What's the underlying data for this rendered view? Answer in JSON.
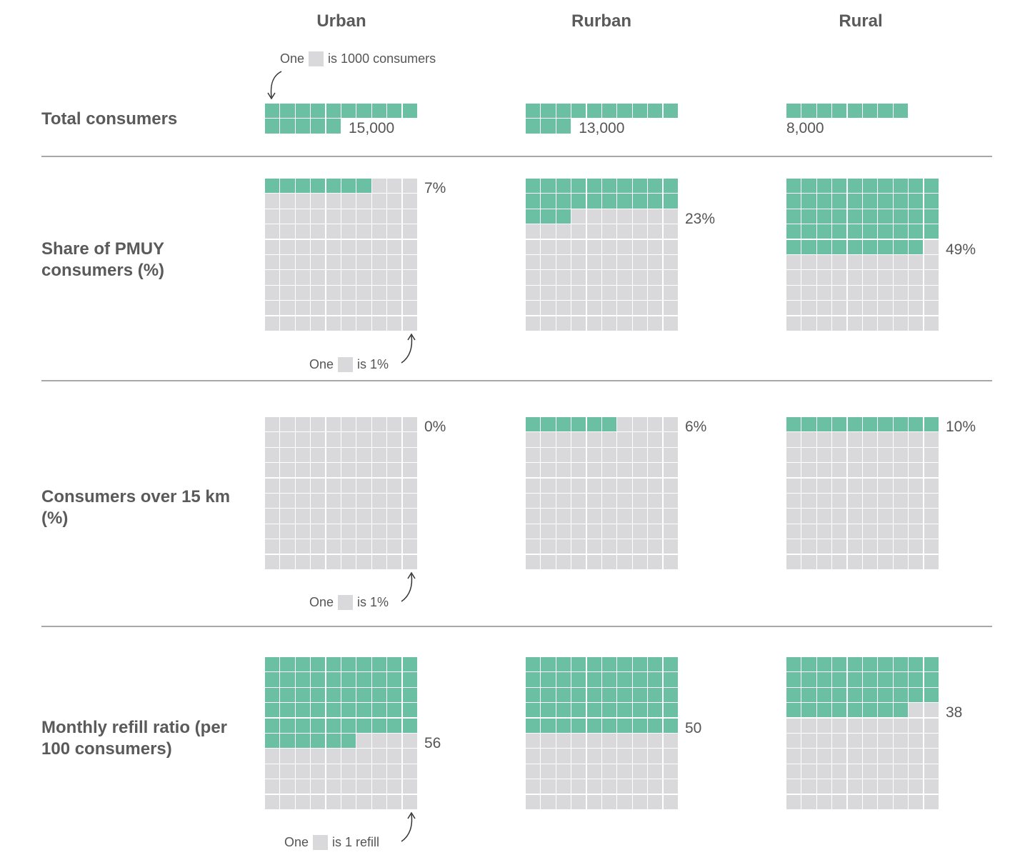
{
  "colors": {
    "filled": "#6bbfa3",
    "empty": "#d9d9dc",
    "text": "#555555",
    "rule": "#a8a8a8"
  },
  "columns": [
    "Urban",
    "Rurban",
    "Rural"
  ],
  "rows": [
    {
      "label": "Total consumers"
    },
    {
      "label": "Share of PMUY consumers (%)"
    },
    {
      "label": "Consumers over 15 km (%)"
    },
    {
      "label": "Monthly refill ratio (per 100 consumers)"
    }
  ],
  "legends": [
    {
      "pre": "One",
      "post": "is 1000 consumers"
    },
    {
      "pre": "One",
      "post": "is 1%"
    },
    {
      "pre": "One",
      "post": "is 1%"
    },
    {
      "pre": "One",
      "post": "is 1 refill"
    }
  ],
  "chart_data": {
    "type": "waffle",
    "columns": [
      "Urban",
      "Rurban",
      "Rural"
    ],
    "rows": [
      {
        "name": "Total consumers",
        "unit": "1 square = 1000 consumers",
        "values": [
          15000,
          13000,
          8000
        ],
        "labels": [
          "15,000",
          "13,000",
          "8,000"
        ]
      },
      {
        "name": "Share of PMUY consumers (%)",
        "unit": "1 square = 1%",
        "total": 100,
        "values": [
          7,
          23,
          49
        ],
        "labels": [
          "7%",
          "23%",
          "49%"
        ]
      },
      {
        "name": "Consumers over 15 km (%)",
        "unit": "1 square = 1%",
        "total": 100,
        "values": [
          0,
          6,
          10
        ],
        "labels": [
          "0%",
          "6%",
          "10%"
        ]
      },
      {
        "name": "Monthly refill ratio (per 100 consumers)",
        "unit": "1 square = 1 refill",
        "total": 100,
        "values": [
          56,
          50,
          38
        ],
        "labels": [
          "56",
          "50",
          "38"
        ]
      }
    ]
  }
}
